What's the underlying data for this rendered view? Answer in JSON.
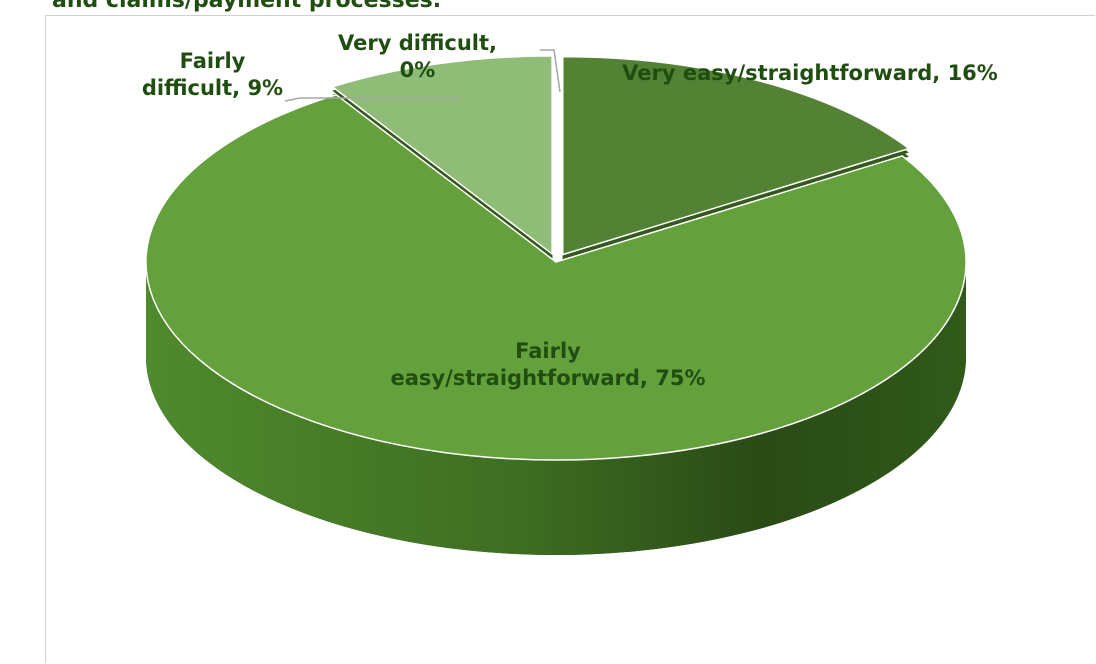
{
  "chart_data": {
    "type": "pie",
    "title": "and claims/payment processes.",
    "categories": [
      "Very easy/straightforward",
      "Fairly easy/straightforward",
      "Fairly difficult",
      "Very difficult"
    ],
    "values": [
      16,
      75,
      9,
      0
    ],
    "value_labels": [
      "Very easy/straightforward, 16%",
      "Fairly easy/straightforward, 75%",
      "Fairly difficult, 9%",
      "Very difficult, 0%"
    ],
    "colors": [
      "#548235",
      "#64a03c",
      "#8fbc76",
      "#3d6b24"
    ]
  }
}
